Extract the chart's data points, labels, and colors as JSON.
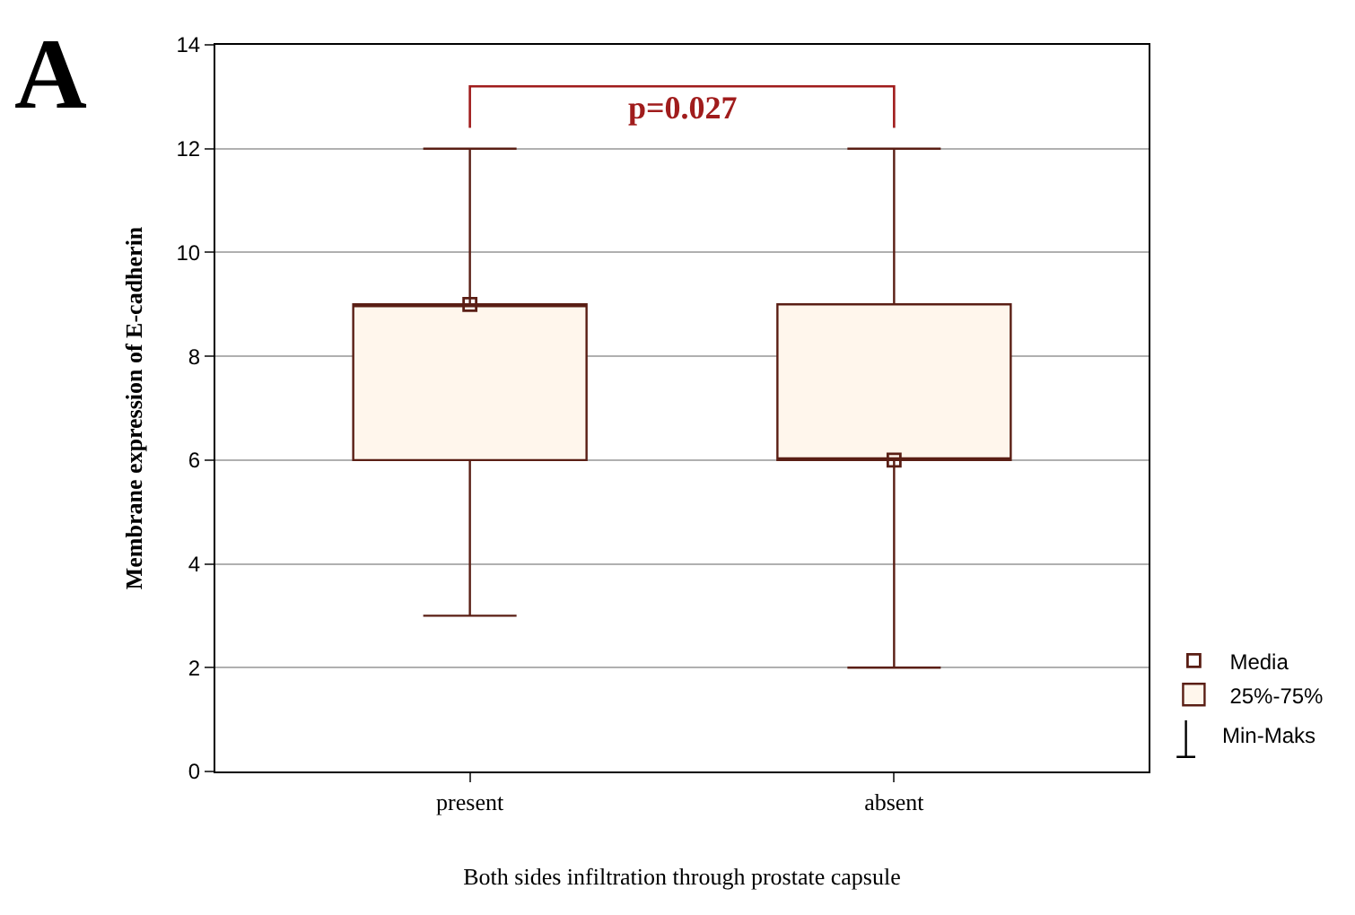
{
  "chart_data": {
    "type": "box",
    "title": "A",
    "xlabel": "Both sides infiltration through prostate capsule",
    "ylabel": "Membrane expression of E-cadherin",
    "categories": [
      "present",
      "absent"
    ],
    "series": [
      {
        "name": "25%-75%",
        "color": "#fff6ec",
        "boxes": [
          {
            "low": 3,
            "q1": 6,
            "median": 9,
            "q3": 9,
            "high": 12
          },
          {
            "low": 2,
            "q1": 6,
            "median": 6,
            "q3": 9,
            "high": 12
          }
        ]
      },
      {
        "name": "Media",
        "type": "scatter",
        "marker": "square",
        "color": "#5a1e14",
        "values": [
          9,
          6
        ]
      }
    ],
    "annotations": [
      "p=0.027",
      "Min-Maks"
    ],
    "ylim": [
      0,
      14
    ],
    "yticks": [
      0,
      2,
      4,
      6,
      8,
      10,
      12,
      14
    ],
    "grid": "y",
    "legend": "bottom right"
  }
}
